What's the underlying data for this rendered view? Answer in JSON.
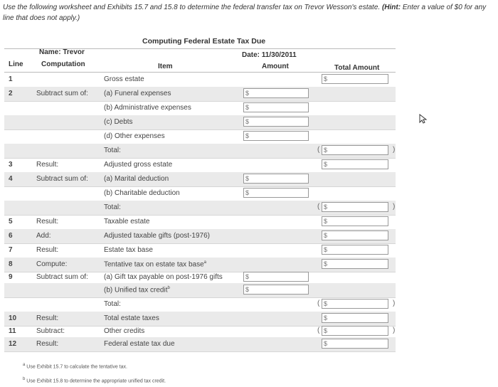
{
  "instructions": {
    "text": "Use the following worksheet and Exhibits 15.7 and 15.8 to determine the federal transfer tax on Trevor Wesson's estate.",
    "hint_label": "(Hint:",
    "hint_text": "Enter a value of $0 for any line that does not apply.)"
  },
  "worksheet": {
    "title": "Computing Federal Estate Tax Due",
    "name_label": "Name: Trevor",
    "date_label": "Date: 11/30/2011",
    "col_line": "Line",
    "col_computation": "Computation",
    "col_item": "Item",
    "col_amount": "Amount",
    "col_total": "Total Amount",
    "currency": "$",
    "open_paren": "(",
    "close_paren": ")",
    "rows": [
      {
        "num": "1",
        "comp": "",
        "item": "Gross estate"
      },
      {
        "num": "2",
        "comp": "Subtract sum of:",
        "item": "(a) Funeral expenses"
      },
      {
        "num": "",
        "comp": "",
        "item": "(b) Administrative expenses"
      },
      {
        "num": "",
        "comp": "",
        "item": "(c) Debts"
      },
      {
        "num": "",
        "comp": "",
        "item": "(d) Other expenses"
      },
      {
        "num": "",
        "comp": "",
        "item": "Total:"
      },
      {
        "num": "3",
        "comp": "Result:",
        "item": "Adjusted gross estate"
      },
      {
        "num": "4",
        "comp": "Subtract sum of:",
        "item": "(a) Marital deduction"
      },
      {
        "num": "",
        "comp": "",
        "item": "(b) Charitable deduction"
      },
      {
        "num": "",
        "comp": "",
        "item": "Total:"
      },
      {
        "num": "5",
        "comp": "Result:",
        "item": "Taxable estate"
      },
      {
        "num": "6",
        "comp": "Add:",
        "item": "Adjusted taxable gifts (post-1976)"
      },
      {
        "num": "7",
        "comp": "Result:",
        "item": "Estate tax base"
      },
      {
        "num": "8",
        "comp": "Compute:",
        "item": "Tentative tax on estate tax base"
      },
      {
        "num": "9",
        "comp": "Subtract sum of:",
        "item": "(a) Gift tax payable on post-1976 gifts"
      },
      {
        "num": "",
        "comp": "",
        "item": "(b) Unified tax credit"
      },
      {
        "num": "",
        "comp": "",
        "item": "Total:"
      },
      {
        "num": "10",
        "comp": "Result:",
        "item": "Total estate taxes"
      },
      {
        "num": "11",
        "comp": "Subtract:",
        "item": "Other credits"
      },
      {
        "num": "12",
        "comp": "Result:",
        "item": "Federal estate tax due"
      }
    ],
    "footnote_a": "Use Exhibit 15.7 to calculate the tentative tax.",
    "footnote_b": "Use Exhibit 15.8 to determine the appropriate unified tax credit.",
    "note_a_mark": "a",
    "note_b_mark": "b"
  }
}
